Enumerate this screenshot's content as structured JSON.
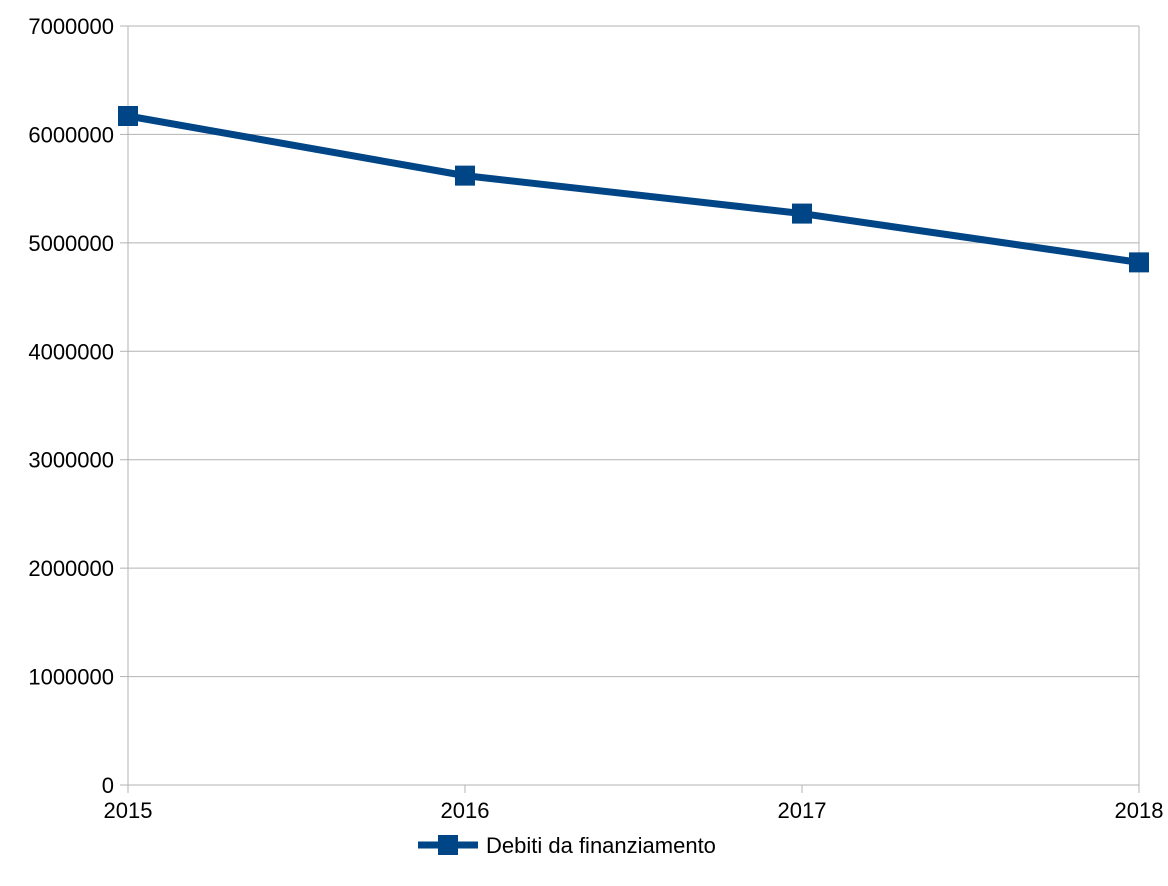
{
  "chart_data": {
    "type": "line",
    "x": [
      "2015",
      "2016",
      "2017",
      "2018"
    ],
    "series": [
      {
        "name": "Debiti da finanziamento",
        "values": [
          6170000,
          5620000,
          5270000,
          4820000
        ],
        "color": "#004586"
      }
    ],
    "yticks": [
      "0",
      "1000000",
      "2000000",
      "3000000",
      "4000000",
      "5000000",
      "6000000",
      "7000000"
    ],
    "ylim": [
      0,
      7000000
    ],
    "grid": true,
    "legend": "bottom-center",
    "marker": "square"
  }
}
